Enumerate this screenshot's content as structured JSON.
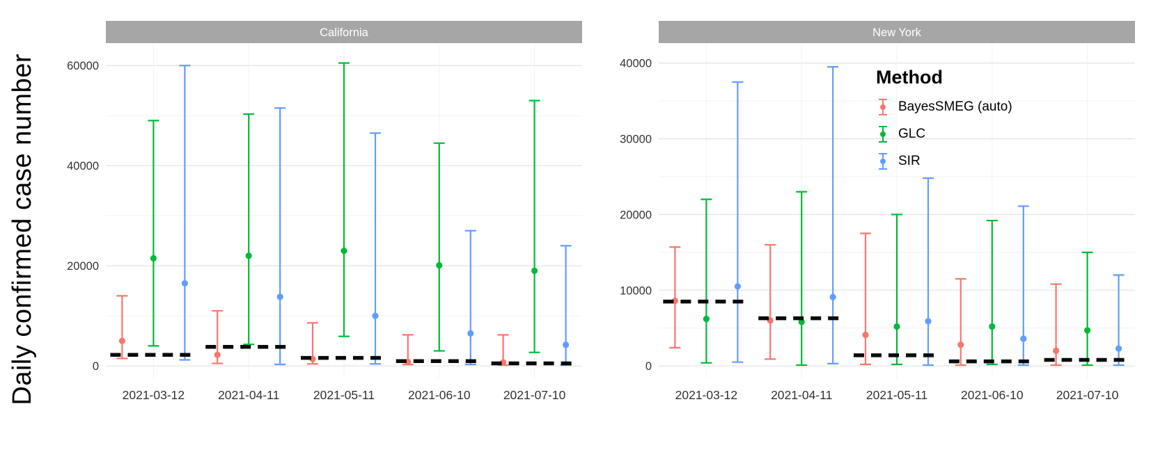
{
  "figure": {
    "ylabel": "Daily confirmed case number"
  },
  "legend": {
    "title": "Method",
    "items": [
      {
        "label": "BayesSMEG  (auto)",
        "color": "#F8766D"
      },
      {
        "label": "GLC",
        "color": "#00BA38"
      },
      {
        "label": "SIR",
        "color": "#619CFF"
      }
    ]
  },
  "colors": {
    "strip_bg": "#A6A6A6",
    "strip_text": "#FFFFFF",
    "grid_major": "#E4E4E4",
    "grid_minor": "#F2F2F2",
    "axis_text": "#333333",
    "dashed_reference": "#0A0A0A",
    "panel_bg": "#FFFFFF"
  },
  "chart_data": [
    {
      "type": "errorbar",
      "title": "California",
      "xlabel": "",
      "ylabel": "Daily confirmed case number",
      "categories": [
        "2021-03-12",
        "2021-04-11",
        "2021-05-11",
        "2021-06-10",
        "2021-07-10"
      ],
      "ylim": [
        0,
        62000
      ],
      "yticks": [
        0,
        20000,
        40000,
        60000
      ],
      "grid": true,
      "series": [
        {
          "name": "BayesSMEG  (auto)",
          "color": "#F8766D",
          "point": [
            5000,
            2200,
            1400,
            800,
            700
          ],
          "lower": [
            1500,
            500,
            400,
            270,
            150
          ],
          "upper": [
            14000,
            11000,
            8600,
            6200,
            6200
          ]
        },
        {
          "name": "GLC",
          "color": "#00BA38",
          "point": [
            21500,
            22000,
            23000,
            20100,
            19000
          ],
          "lower": [
            4000,
            4300,
            5900,
            3000,
            2700
          ],
          "upper": [
            49000,
            50300,
            60500,
            44500,
            53000
          ]
        },
        {
          "name": "SIR",
          "color": "#619CFF",
          "point": [
            16500,
            13800,
            10000,
            6500,
            4200
          ],
          "lower": [
            1200,
            300,
            400,
            300,
            150
          ],
          "upper": [
            60000,
            51500,
            46500,
            27000,
            24000
          ]
        }
      ],
      "dashed_reference": [
        2200,
        3800,
        1600,
        950,
        500
      ]
    },
    {
      "type": "errorbar",
      "title": "New York",
      "xlabel": "",
      "ylabel": "Daily confirmed case number",
      "categories": [
        "2021-03-12",
        "2021-04-11",
        "2021-05-11",
        "2021-06-10",
        "2021-07-10"
      ],
      "ylim": [
        0,
        41000
      ],
      "yticks": [
        0,
        10000,
        20000,
        30000,
        40000
      ],
      "grid": true,
      "series": [
        {
          "name": "BayesSMEG  (auto)",
          "color": "#F8766D",
          "point": [
            8600,
            6000,
            4100,
            2800,
            2000
          ],
          "lower": [
            2400,
            900,
            200,
            100,
            100
          ],
          "upper": [
            15700,
            16000,
            17500,
            11500,
            10800
          ]
        },
        {
          "name": "GLC",
          "color": "#00BA38",
          "point": [
            6200,
            5800,
            5200,
            5200,
            4700
          ],
          "lower": [
            400,
            100,
            200,
            200,
            100
          ],
          "upper": [
            22000,
            23000,
            20000,
            19200,
            15000
          ]
        },
        {
          "name": "SIR",
          "color": "#619CFF",
          "point": [
            10500,
            9100,
            5900,
            3600,
            2300
          ],
          "lower": [
            500,
            300,
            100,
            100,
            100
          ],
          "upper": [
            37500,
            39500,
            24800,
            21100,
            12000
          ]
        }
      ],
      "dashed_reference": [
        8500,
        6300,
        1400,
        600,
        800
      ]
    }
  ]
}
